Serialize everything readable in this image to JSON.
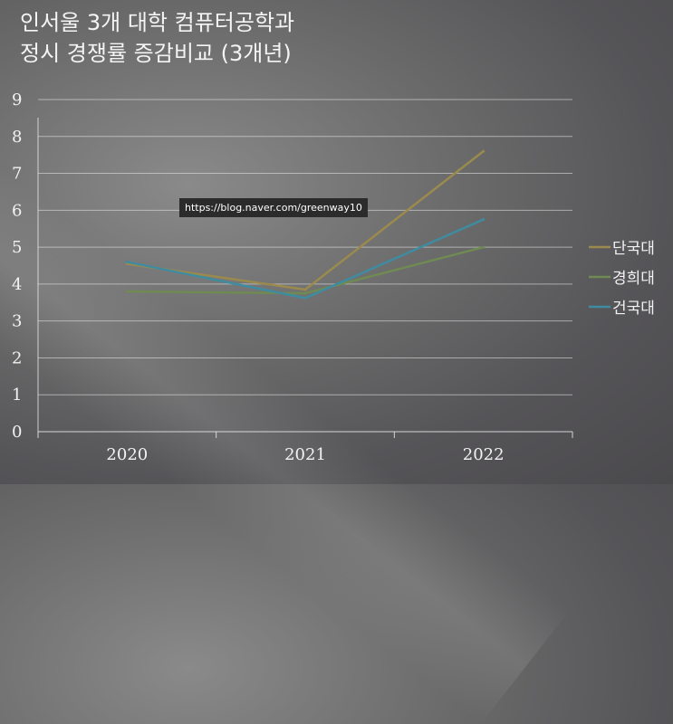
{
  "title": {
    "line1": "인서울 3개 대학 컴퓨터공학과",
    "line2": "정시 경쟁률 증감비교 (3개년)"
  },
  "watermark": "https://blog.naver.com/greenway10",
  "chart_data": {
    "type": "line",
    "categories": [
      "2020",
      "2021",
      "2022"
    ],
    "series": [
      {
        "name": "단국대",
        "values": [
          4.55,
          3.85,
          7.6
        ],
        "color": "#9a8a4e"
      },
      {
        "name": "경희대",
        "values": [
          3.8,
          3.75,
          5.0
        ],
        "color": "#6f8a52"
      },
      {
        "name": "건국대",
        "values": [
          4.6,
          3.62,
          5.75
        ],
        "color": "#3f8ca0"
      }
    ],
    "yticks": [
      "0",
      "1",
      "2",
      "3",
      "4",
      "5",
      "6",
      "7",
      "8",
      "9"
    ],
    "ylim": [
      0,
      9
    ],
    "grid": true,
    "legend": "right"
  }
}
